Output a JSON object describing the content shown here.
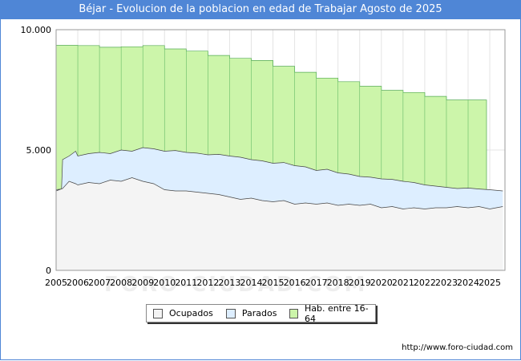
{
  "chart_data": {
    "type": "area",
    "title": "Béjar - Evolucion de la poblacion en edad de Trabajar Agosto de 2025",
    "xlabel": "",
    "ylabel": "",
    "xlim": [
      2005,
      2025.7
    ],
    "ylim": [
      0,
      10000
    ],
    "yticks": [
      {
        "value": 0,
        "label": "0"
      },
      {
        "value": 5000,
        "label": "5.000"
      },
      {
        "value": 10000,
        "label": "10.000"
      }
    ],
    "xticks": [
      "2005",
      "2006",
      "2007",
      "2008",
      "2009",
      "2010",
      "2011",
      "2012",
      "2013",
      "2014",
      "2015",
      "2016",
      "2017",
      "2018",
      "2019",
      "2020",
      "2021",
      "2022",
      "2023",
      "2024",
      "2025"
    ],
    "grid": true,
    "legend": "bottom",
    "series": [
      {
        "name": "Hab. entre 16-64",
        "color": "#ccf5aa",
        "x": [
          2005,
          2006,
          2007,
          2008,
          2009,
          2010,
          2011,
          2012,
          2013,
          2014,
          2015,
          2016,
          2017,
          2018,
          2019,
          2020,
          2021,
          2022,
          2023,
          2024
        ],
        "values": [
          9350,
          9340,
          9270,
          9290,
          9340,
          9200,
          9110,
          8930,
          8810,
          8720,
          8480,
          8230,
          7990,
          7840,
          7650,
          7480,
          7390,
          7230,
          7080,
          7080
        ]
      },
      {
        "name": "Parados",
        "color": "#ddeeff",
        "x": [
          2005,
          2005.25,
          2005.3,
          2005.6,
          2005.9,
          2006,
          2006.5,
          2007,
          2007.5,
          2008,
          2008.5,
          2009,
          2009.5,
          2010,
          2010.5,
          2011,
          2011.5,
          2012,
          2012.5,
          2013,
          2013.5,
          2014,
          2014.5,
          2015,
          2015.5,
          2016,
          2016.5,
          2017,
          2017.5,
          2018,
          2018.5,
          2019,
          2019.5,
          2020,
          2020.5,
          2021,
          2021.5,
          2022,
          2022.5,
          2023,
          2023.5,
          2024,
          2024.5,
          2025,
          2025.6
        ],
        "values": [
          3350,
          3380,
          4600,
          4750,
          4950,
          4750,
          4850,
          4900,
          4850,
          5000,
          4950,
          5100,
          5050,
          4950,
          4980,
          4900,
          4870,
          4800,
          4820,
          4750,
          4700,
          4600,
          4550,
          4450,
          4480,
          4350,
          4300,
          4150,
          4200,
          4050,
          4000,
          3900,
          3870,
          3800,
          3780,
          3700,
          3650,
          3550,
          3500,
          3450,
          3400,
          3420,
          3380,
          3350,
          3300
        ]
      },
      {
        "name": "Ocupados",
        "color": "#f4f4f4",
        "x": [
          2005,
          2005.3,
          2005.6,
          2005.9,
          2006,
          2006.5,
          2007,
          2007.5,
          2008,
          2008.5,
          2009,
          2009.5,
          2010,
          2010.5,
          2011,
          2011.5,
          2012,
          2012.5,
          2013,
          2013.5,
          2014,
          2014.5,
          2015,
          2015.5,
          2016,
          2016.5,
          2017,
          2017.5,
          2018,
          2018.5,
          2019,
          2019.5,
          2020,
          2020.5,
          2021,
          2021.5,
          2022,
          2022.5,
          2023,
          2023.5,
          2024,
          2024.5,
          2025,
          2025.6
        ],
        "values": [
          3300,
          3400,
          3700,
          3600,
          3550,
          3650,
          3600,
          3750,
          3700,
          3850,
          3700,
          3600,
          3350,
          3300,
          3300,
          3250,
          3200,
          3150,
          3050,
          2950,
          3000,
          2900,
          2850,
          2900,
          2750,
          2800,
          2750,
          2800,
          2700,
          2750,
          2700,
          2750,
          2600,
          2650,
          2550,
          2600,
          2550,
          2600,
          2600,
          2650,
          2600,
          2650,
          2550,
          2650
        ]
      }
    ]
  },
  "footer": {
    "watermark": "FORO-CIUDAD.COM",
    "url": "http://www.foro-ciudad.com"
  },
  "legend_labels": {
    "ocupados": "Ocupados",
    "parados": "Parados",
    "hab": "Hab. entre 16-64"
  }
}
